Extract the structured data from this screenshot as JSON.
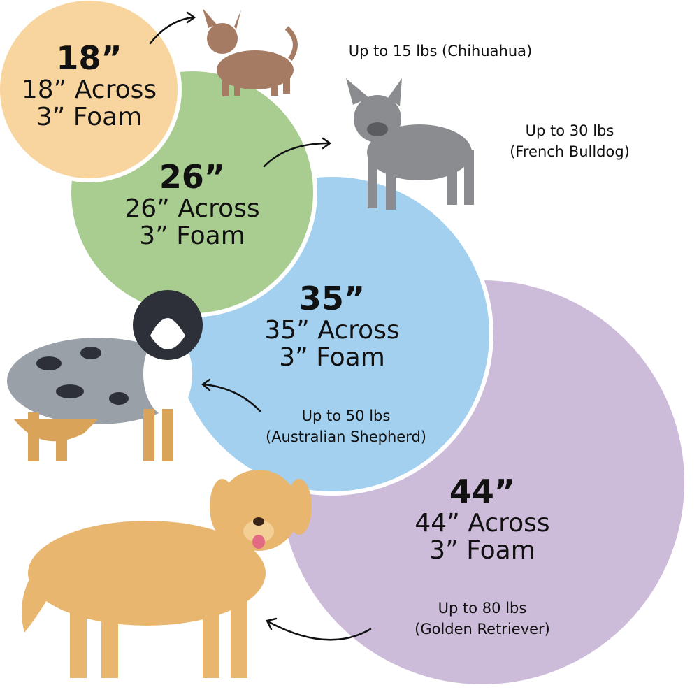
{
  "colors": {
    "bed_18": "#F8D59F",
    "bed_26": "#A9CD91",
    "bed_35": "#A2D0EE",
    "bed_44": "#CDBBDA"
  },
  "beds": [
    {
      "size": "18”",
      "across": "18” Across",
      "foam": "3” Foam",
      "capacity": "Up to 15 lbs (Chihuahua)",
      "dog": "chihuahua"
    },
    {
      "size": "26”",
      "across": "26” Across",
      "foam": "3” Foam",
      "capacity_line1": "Up to 30 lbs",
      "capacity_line2": "(French Bulldog)",
      "dog": "french-bulldog"
    },
    {
      "size": "35”",
      "across": "35” Across",
      "foam": "3” Foam",
      "capacity_line1": "Up to 50 lbs",
      "capacity_line2": "(Australian Shepherd)",
      "dog": "australian-shepherd"
    },
    {
      "size": "44”",
      "across": "44” Across",
      "foam": "3” Foam",
      "capacity_line1": "Up to 80 lbs",
      "capacity_line2": "(Golden Retriever)",
      "dog": "golden-retriever"
    }
  ]
}
